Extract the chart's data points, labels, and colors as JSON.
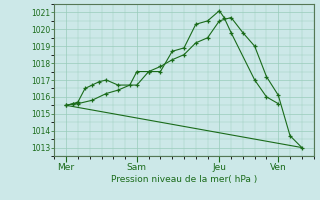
{
  "bg_color": "#cce8e8",
  "grid_color": "#99ccbb",
  "line_color": "#1a6b1a",
  "xlabel": "Pression niveau de la mer( hPa )",
  "ylim": [
    1012.5,
    1021.5
  ],
  "yticks": [
    1013,
    1014,
    1015,
    1016,
    1017,
    1018,
    1019,
    1020,
    1021
  ],
  "day_labels": [
    "Mer",
    "Sam",
    "Jeu",
    "Ven"
  ],
  "day_positions": [
    0.5,
    3.5,
    7.0,
    9.5
  ],
  "xlim": [
    0,
    11.0
  ],
  "line1_x": [
    0.5,
    0.8,
    1.0,
    1.3,
    1.6,
    1.9,
    2.2,
    2.7,
    3.5,
    4.0,
    4.5,
    5.0,
    5.5,
    6.0,
    6.5,
    7.0,
    7.2,
    7.5,
    8.5,
    9.0,
    9.5
  ],
  "line1_y": [
    1015.5,
    1015.6,
    1015.7,
    1016.5,
    1016.7,
    1016.9,
    1017.0,
    1016.7,
    1016.7,
    1017.5,
    1017.5,
    1018.7,
    1018.9,
    1020.3,
    1020.5,
    1021.1,
    1020.7,
    1019.8,
    1017.0,
    1016.0,
    1015.6
  ],
  "line2_x": [
    0.5,
    0.8,
    1.0,
    1.6,
    2.2,
    2.7,
    3.2,
    3.5,
    4.0,
    4.5,
    5.0,
    5.5,
    6.0,
    6.5,
    7.0,
    7.5,
    8.0,
    8.5,
    9.0,
    9.5,
    10.0,
    10.5
  ],
  "line2_y": [
    1015.5,
    1015.6,
    1015.6,
    1015.8,
    1016.2,
    1016.4,
    1016.7,
    1017.5,
    1017.5,
    1017.8,
    1018.2,
    1018.5,
    1019.2,
    1019.5,
    1020.5,
    1020.7,
    1019.8,
    1019.0,
    1017.2,
    1016.1,
    1013.7,
    1013.0
  ],
  "line3_x": [
    0.5,
    10.5
  ],
  "line3_y": [
    1015.5,
    1013.0
  ],
  "xtick_positions": [
    0.5,
    3.5,
    7.0,
    9.5
  ],
  "xtick_labels": [
    "Mer",
    "Sam",
    "Jeu",
    "Ven"
  ]
}
